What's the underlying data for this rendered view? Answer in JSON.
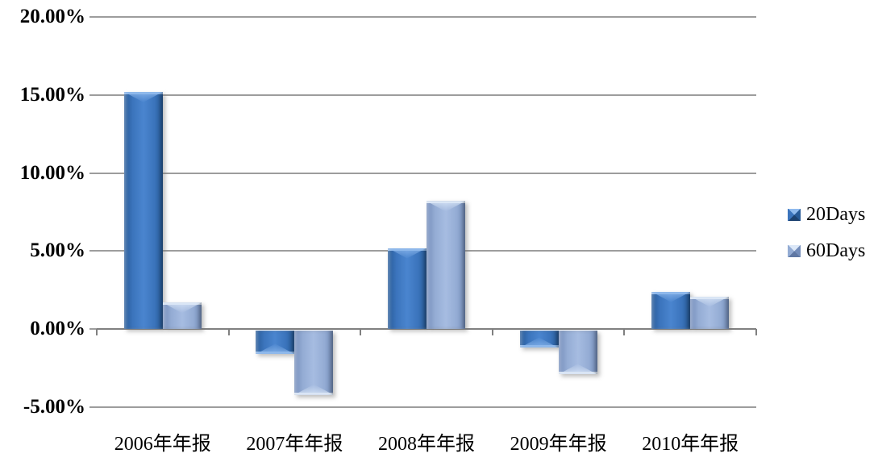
{
  "chart_data": {
    "type": "bar",
    "title": "",
    "xlabel": "",
    "ylabel": "",
    "categories": [
      "2006年年报",
      "2007年年报",
      "2008年年报",
      "2009年年报",
      "2010年年报"
    ],
    "series": [
      {
        "name": "20Days",
        "values": [
          15.2,
          -1.5,
          5.2,
          -1.1,
          2.4
        ]
      },
      {
        "name": "60Days",
        "values": [
          1.7,
          -4.1,
          8.2,
          -2.8,
          2.1
        ]
      }
    ],
    "ylim": [
      -5,
      20
    ],
    "yticks": [
      {
        "value": 20,
        "label": "20.00%"
      },
      {
        "value": 15,
        "label": "15.00%"
      },
      {
        "value": 10,
        "label": "10.00%"
      },
      {
        "value": 5,
        "label": "5.00%"
      },
      {
        "value": 0,
        "label": "0.00%"
      },
      {
        "value": -5,
        "label": "-5.00%"
      }
    ],
    "grid": true,
    "legend_position": "right",
    "value_unit": "%"
  },
  "style": {
    "grid_color": "#9d9d9d",
    "axis_color": "#808080",
    "text_color": "#000000",
    "series_colors": [
      {
        "name": "20Days",
        "main": "#3b74bc",
        "mid": "#4a85cf",
        "edge": "#275a97",
        "dark": "#1c4271",
        "bevel": "#8fbaee"
      },
      {
        "name": "60Days",
        "main": "#94acd4",
        "mid": "#a6bce1",
        "edge": "#748dba",
        "dark": "#5f77a3",
        "bevel": "#dce8f8"
      }
    ]
  }
}
